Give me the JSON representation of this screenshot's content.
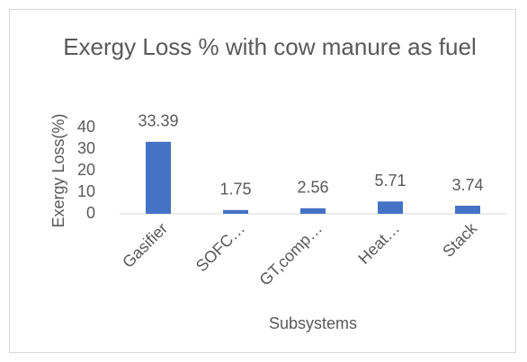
{
  "chart_data": {
    "type": "bar",
    "title": "Exergy Loss % with cow manure as fuel",
    "x_label": "Subsystems",
    "y_label": "Exergy Loss(%)",
    "categories": [
      "Gasifier",
      "SOFC…",
      "GT,comp…",
      "Heat…",
      "Stack"
    ],
    "values": [
      33.39,
      1.75,
      2.56,
      5.71,
      3.74
    ],
    "color": "#4472c4",
    "ylim": [
      0,
      40
    ],
    "yticks": [
      0,
      10,
      20,
      30,
      40
    ],
    "grid": false
  }
}
